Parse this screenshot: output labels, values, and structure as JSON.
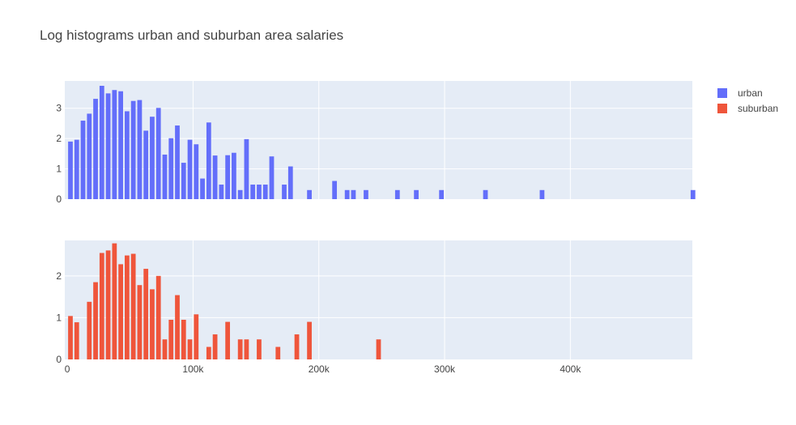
{
  "chart_data": {
    "type": "bar",
    "title": "Log histograms urban and suburban area salaries",
    "legend": {
      "placement": "top-right"
    },
    "x_axis": {
      "range": [
        -2000,
        497000
      ],
      "tick_values": [
        0,
        100000,
        200000,
        300000,
        400000
      ],
      "tick_labels": [
        "0",
        "100k",
        "200k",
        "300k",
        "400k"
      ]
    },
    "bin_width": 5000,
    "grid": true,
    "colors": {
      "urban": "#636efa",
      "suburban": "#ef553b",
      "plot_bg": "#e5ecf6",
      "grid": "#ffffff"
    },
    "series": [
      {
        "name": "urban",
        "color": "#636efa",
        "ylim": [
          0,
          3.9
        ],
        "y_ticks": [
          0,
          1,
          2,
          3
        ],
        "y_tick_labels": [
          "0",
          "1",
          "2",
          "3"
        ],
        "x": [
          0,
          5000,
          10000,
          15000,
          20000,
          25000,
          30000,
          35000,
          40000,
          45000,
          50000,
          55000,
          60000,
          65000,
          70000,
          75000,
          80000,
          85000,
          90000,
          95000,
          100000,
          105000,
          110000,
          115000,
          120000,
          125000,
          130000,
          135000,
          140000,
          145000,
          150000,
          155000,
          160000,
          170000,
          175000,
          190000,
          210000,
          220000,
          225000,
          235000,
          260000,
          275000,
          295000,
          330000,
          375000,
          495000
        ],
        "values": [
          1.9,
          1.96,
          2.59,
          2.82,
          3.31,
          3.74,
          3.49,
          3.6,
          3.56,
          2.9,
          3.24,
          3.27,
          2.26,
          2.72,
          3.01,
          1.47,
          2.01,
          2.43,
          1.2,
          1.96,
          1.81,
          0.68,
          2.53,
          1.44,
          0.48,
          1.45,
          1.53,
          0.3,
          1.98,
          0.48,
          0.48,
          0.48,
          1.41,
          0.48,
          1.08,
          0.3,
          0.6,
          0.3,
          0.3,
          0.3,
          0.3,
          0.3,
          0.3,
          0.3,
          0.3,
          0.3
        ]
      },
      {
        "name": "suburban",
        "color": "#ef553b",
        "ylim": [
          0,
          2.85
        ],
        "y_ticks": [
          0,
          1,
          2
        ],
        "y_tick_labels": [
          "0",
          "1",
          "2"
        ],
        "x": [
          0,
          5000,
          15000,
          20000,
          25000,
          30000,
          35000,
          40000,
          45000,
          50000,
          55000,
          60000,
          65000,
          70000,
          75000,
          80000,
          85000,
          90000,
          95000,
          100000,
          110000,
          115000,
          125000,
          135000,
          140000,
          150000,
          165000,
          180000,
          190000,
          245000
        ],
        "values": [
          1.04,
          0.89,
          1.38,
          1.85,
          2.55,
          2.61,
          2.78,
          2.28,
          2.49,
          2.53,
          1.78,
          2.17,
          1.68,
          2.0,
          0.48,
          0.95,
          1.54,
          0.95,
          0.48,
          1.08,
          0.3,
          0.6,
          0.9,
          0.48,
          0.48,
          0.48,
          0.3,
          0.6,
          0.9,
          0.48
        ]
      }
    ]
  }
}
